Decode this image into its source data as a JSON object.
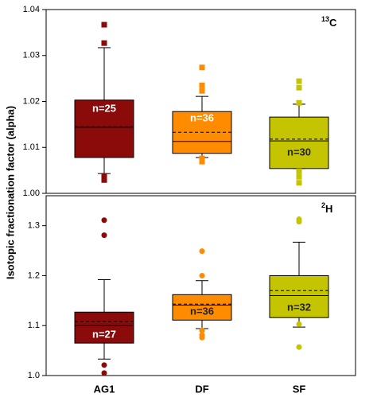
{
  "chart_data": [
    {
      "type": "box",
      "ylabel": "Isotopic fractionation factor (alpha)",
      "panel_label": {
        "mass": "13",
        "element": "C"
      },
      "ylim": [
        1.0,
        1.04
      ],
      "yticks": [
        {
          "value": 1.0,
          "label": "1.00"
        },
        {
          "value": 1.01,
          "label": "1.01"
        },
        {
          "value": 1.02,
          "label": "1.02"
        },
        {
          "value": 1.03,
          "label": "1.03"
        },
        {
          "value": 1.04,
          "label": "1.04"
        }
      ],
      "series": [
        {
          "color": "#8b0a0a",
          "whisker_low": 1.0043,
          "q1": 1.0078,
          "median": 1.0144,
          "mean": 1.0145,
          "q3": 1.0203,
          "whisker_high": 1.0317,
          "outliers": [
            1.0367,
            1.0327,
            1.0038,
            1.0029
          ],
          "n_label": "n=25"
        },
        {
          "color": "#ff8c00",
          "whisker_low": 1.0078,
          "q1": 1.0087,
          "median": 1.0113,
          "mean": 1.0133,
          "q3": 1.0178,
          "whisker_high": 1.0211,
          "outliers": [
            1.0274,
            1.0235,
            1.0223,
            1.0076,
            1.0069
          ],
          "n_label": "n=36"
        },
        {
          "color": "#c4c400",
          "whisker_low": 1.0054,
          "q1": 1.0054,
          "median": 1.0114,
          "mean": 1.0118,
          "q3": 1.0166,
          "whisker_high": 1.0194,
          "outliers": [
            1.0244,
            1.023,
            1.0197,
            1.0048,
            1.0036,
            1.0023
          ],
          "n_label": "n=30"
        }
      ]
    },
    {
      "type": "box",
      "panel_label": {
        "mass": "2",
        "element": "H"
      },
      "categories": [
        "AG1",
        "DF",
        "SF"
      ],
      "ylim": [
        1.0,
        1.36
      ],
      "yticks": [
        {
          "value": 1.0,
          "label": "1.0"
        },
        {
          "value": 1.1,
          "label": "1.1"
        },
        {
          "value": 1.2,
          "label": "1.2"
        },
        {
          "value": 1.3,
          "label": "1.3"
        }
      ],
      "series": [
        {
          "color": "#8b0a0a",
          "whisker_low": 1.033,
          "q1": 1.065,
          "median": 1.1,
          "mean": 1.108,
          "q3": 1.127,
          "whisker_high": 1.192,
          "outliers": [
            1.311,
            1.281,
            1.021,
            1.005
          ],
          "n_label": "n=27"
        },
        {
          "color": "#ff8c00",
          "whisker_low": 1.094,
          "q1": 1.111,
          "median": 1.141,
          "mean": 1.143,
          "q3": 1.162,
          "whisker_high": 1.19,
          "outliers": [
            1.249,
            1.2,
            1.09,
            1.081,
            1.076
          ],
          "n_label": "n=36"
        },
        {
          "color": "#c4c400",
          "whisker_low": 1.097,
          "q1": 1.116,
          "median": 1.16,
          "mean": 1.17,
          "q3": 1.2,
          "whisker_high": 1.267,
          "outliers": [
            1.313,
            1.308,
            1.103,
            1.057
          ],
          "n_label": "n=32"
        }
      ]
    }
  ]
}
